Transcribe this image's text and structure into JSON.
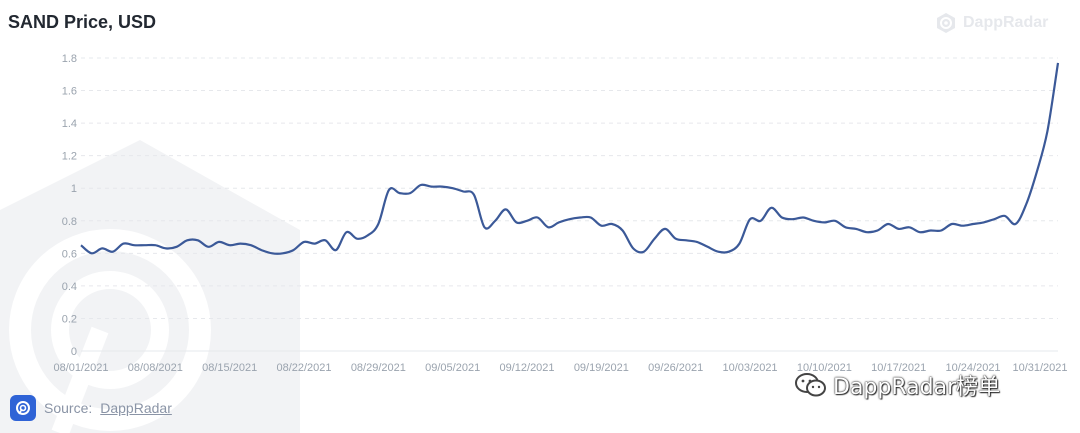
{
  "header": {
    "brand_top": "DappRadar"
  },
  "source": {
    "prefix": "Source:",
    "link": "DappRadar"
  },
  "watermark": {
    "text": "DappRadar榜单"
  },
  "colors": {
    "line": "#3b5998",
    "grid": "#e6e8ec",
    "axis_text": "#9aa3ae",
    "logo": "#2f63d6"
  },
  "chart_data": {
    "type": "line",
    "title": "SAND Price, USD",
    "xlabel": "",
    "ylabel": "",
    "ylim": [
      0,
      1.8
    ],
    "yticks": [
      "0",
      "0.2",
      "0.4",
      "0.6",
      "0.8",
      "1",
      "1.2",
      "1.4",
      "1.6",
      "1.8"
    ],
    "xticks": [
      "08/01/2021",
      "08/08/2021",
      "08/15/2021",
      "08/22/2021",
      "08/29/2021",
      "09/05/2021",
      "09/12/2021",
      "09/19/2021",
      "09/26/2021",
      "10/03/2021",
      "10/10/2021",
      "10/17/2021",
      "10/24/2021",
      "10/31/2021"
    ],
    "grid": true,
    "series": [
      {
        "x": [
          "2021-08-01",
          "2021-08-02",
          "2021-08-03",
          "2021-08-04",
          "2021-08-05",
          "2021-08-06",
          "2021-08-07",
          "2021-08-08",
          "2021-08-09",
          "2021-08-10",
          "2021-08-11",
          "2021-08-12",
          "2021-08-13",
          "2021-08-14",
          "2021-08-15",
          "2021-08-16",
          "2021-08-17",
          "2021-08-18",
          "2021-08-19",
          "2021-08-20",
          "2021-08-21",
          "2021-08-22",
          "2021-08-23",
          "2021-08-24",
          "2021-08-25",
          "2021-08-26",
          "2021-08-27",
          "2021-08-28",
          "2021-08-29",
          "2021-08-30",
          "2021-08-31",
          "2021-09-01",
          "2021-09-02",
          "2021-09-03",
          "2021-09-04",
          "2021-09-05",
          "2021-09-06",
          "2021-09-07",
          "2021-09-08",
          "2021-09-09",
          "2021-09-10",
          "2021-09-11",
          "2021-09-12",
          "2021-09-13",
          "2021-09-14",
          "2021-09-15",
          "2021-09-16",
          "2021-09-17",
          "2021-09-18",
          "2021-09-19",
          "2021-09-20",
          "2021-09-21",
          "2021-09-22",
          "2021-09-23",
          "2021-09-24",
          "2021-09-25",
          "2021-09-26",
          "2021-09-27",
          "2021-09-28",
          "2021-09-29",
          "2021-09-30",
          "2021-10-01",
          "2021-10-02",
          "2021-10-03",
          "2021-10-04",
          "2021-10-05",
          "2021-10-06",
          "2021-10-07",
          "2021-10-08",
          "2021-10-09",
          "2021-10-10",
          "2021-10-11",
          "2021-10-12",
          "2021-10-13",
          "2021-10-14",
          "2021-10-15",
          "2021-10-16",
          "2021-10-17",
          "2021-10-18",
          "2021-10-19",
          "2021-10-20",
          "2021-10-21",
          "2021-10-22",
          "2021-10-23",
          "2021-10-24",
          "2021-10-25",
          "2021-10-26",
          "2021-10-27",
          "2021-10-28",
          "2021-10-29",
          "2021-10-30",
          "2021-10-31",
          "2021-11-01"
        ],
        "values": [
          0.65,
          0.6,
          0.63,
          0.61,
          0.66,
          0.65,
          0.65,
          0.65,
          0.63,
          0.64,
          0.68,
          0.68,
          0.64,
          0.67,
          0.65,
          0.66,
          0.65,
          0.62,
          0.6,
          0.6,
          0.62,
          0.67,
          0.66,
          0.68,
          0.62,
          0.73,
          0.69,
          0.71,
          0.78,
          0.99,
          0.97,
          0.97,
          1.02,
          1.01,
          1.01,
          1.0,
          0.98,
          0.96,
          0.76,
          0.8,
          0.87,
          0.79,
          0.8,
          0.82,
          0.76,
          0.79,
          0.81,
          0.82,
          0.82,
          0.77,
          0.78,
          0.74,
          0.63,
          0.61,
          0.69,
          0.75,
          0.69,
          0.68,
          0.67,
          0.64,
          0.61,
          0.61,
          0.66,
          0.81,
          0.8,
          0.88,
          0.82,
          0.81,
          0.82,
          0.8,
          0.79,
          0.8,
          0.76,
          0.75,
          0.73,
          0.74,
          0.78,
          0.75,
          0.76,
          0.73,
          0.74,
          0.74,
          0.78,
          0.77,
          0.78,
          0.79,
          0.81,
          0.83,
          0.78,
          0.9,
          1.1,
          1.35,
          1.77
        ]
      }
    ]
  }
}
